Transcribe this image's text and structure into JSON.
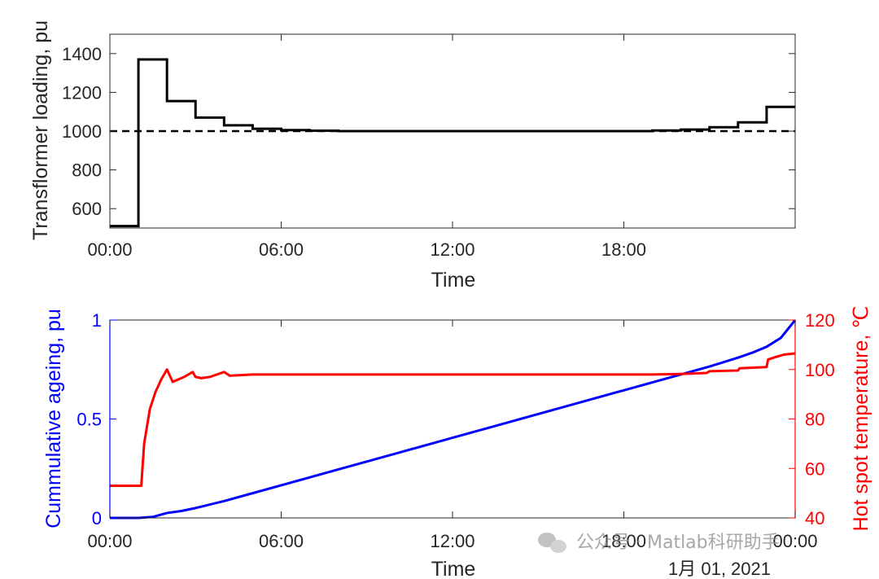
{
  "chart_data": [
    {
      "type": "line",
      "ylabel": "Transflormer loading, pu",
      "xlabel": "Time",
      "xlim": [
        0,
        24
      ],
      "ylim": [
        500,
        1500
      ],
      "yticks": [
        600,
        800,
        1000,
        1200,
        1400
      ],
      "xticks": [
        0,
        6,
        12,
        18
      ],
      "xticklabels": [
        "00:00",
        "06:00",
        "12:00",
        "18:00"
      ],
      "grid": false,
      "series": [
        {
          "style": "solid-step",
          "color": "#000000",
          "steps": [
            [
              0,
              510
            ],
            [
              1,
              1370
            ],
            [
              2,
              1155
            ],
            [
              3,
              1070
            ],
            [
              4,
              1030
            ],
            [
              5,
              1012
            ],
            [
              6,
              1005
            ],
            [
              7,
              1002
            ],
            [
              8,
              1000
            ],
            [
              19,
              1003
            ],
            [
              20,
              1008
            ],
            [
              21,
              1020
            ],
            [
              22,
              1045
            ],
            [
              23,
              1125
            ]
          ]
        },
        {
          "style": "dashed",
          "color": "#000000",
          "x": [
            0,
            24
          ],
          "y": [
            1000,
            1000
          ]
        }
      ]
    },
    {
      "type": "line",
      "ylabel": "Cummulative ageing, pu",
      "ylabel_right": "Hot spot temperature, ℃",
      "xlabel": "Time",
      "date_label": "1月 01, 2021",
      "xlim": [
        0,
        24
      ],
      "ylim": [
        0,
        1
      ],
      "ylim_right": [
        40,
        120
      ],
      "yticks": [
        0,
        0.5,
        1
      ],
      "yticklabels": [
        "0",
        "0.5",
        "1"
      ],
      "yticks_right": [
        40,
        60,
        80,
        100,
        120
      ],
      "xticks": [
        0,
        6,
        12,
        18,
        24
      ],
      "xticklabels": [
        "00:00",
        "06:00",
        "12:00",
        "18:00",
        "00:00"
      ],
      "grid": false,
      "colors": {
        "left": "#0000ff",
        "right": "#ff0000"
      },
      "series": [
        {
          "axis": "left",
          "color": "#0000ff",
          "x": [
            0,
            1,
            1.5,
            2,
            2.5,
            3,
            4,
            5,
            6,
            8,
            10,
            12,
            14,
            16,
            18,
            20,
            21,
            22,
            22.5,
            23,
            23.5,
            24
          ],
          "y": [
            0,
            0,
            0.005,
            0.025,
            0.035,
            0.05,
            0.085,
            0.125,
            0.165,
            0.245,
            0.325,
            0.405,
            0.485,
            0.565,
            0.645,
            0.725,
            0.765,
            0.81,
            0.835,
            0.865,
            0.91,
            1.0
          ]
        },
        {
          "axis": "right",
          "color": "#ff0000",
          "x": [
            0,
            1,
            1.1,
            1.2,
            1.4,
            1.6,
            1.8,
            2.0,
            2.2,
            2.4,
            2.6,
            2.9,
            3.0,
            3.2,
            3.5,
            4.0,
            4.2,
            5.0,
            6.0,
            8.0,
            12.0,
            18.0,
            19.0,
            20.0,
            20.9,
            21.0,
            22.0,
            22.05,
            23.0,
            23.05,
            23.3,
            23.6,
            24.0
          ],
          "y": [
            53,
            53,
            53,
            70,
            84,
            91,
            96,
            100,
            95,
            96,
            97,
            99,
            97,
            96.5,
            97,
            99,
            97.5,
            98,
            98,
            98,
            98,
            98,
            98,
            98.2,
            98.6,
            99.3,
            99.6,
            100.5,
            101,
            104,
            105,
            106,
            106.5
          ]
        }
      ]
    }
  ],
  "watermark": {
    "text": "公众号 · Matlab科研助手",
    "icon": "wechat-icon"
  }
}
